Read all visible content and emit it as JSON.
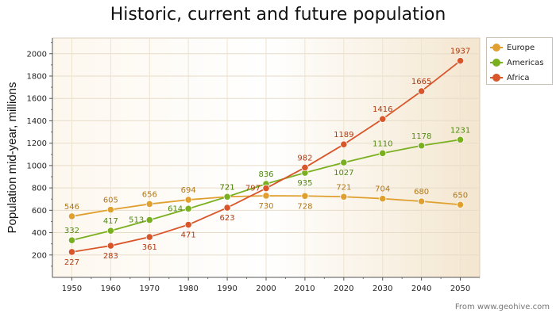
{
  "chart_data": {
    "type": "line",
    "title": "Historic, current and future population",
    "xlabel": "",
    "ylabel": "Population mid-year, millions",
    "x": [
      1950,
      1960,
      1970,
      1980,
      1990,
      2000,
      2010,
      2020,
      2030,
      2040,
      2050
    ],
    "ylim": [
      0,
      2140
    ],
    "yticks": [
      200,
      400,
      600,
      800,
      1000,
      1200,
      1400,
      1600,
      1800,
      2000
    ],
    "grid": true,
    "legend_position": "top-right",
    "series": [
      {
        "name": "Europe",
        "color": "#e0a030",
        "label_color": "#b07818",
        "values": [
          546,
          605,
          656,
          694,
          721,
          730,
          728,
          721,
          704,
          680,
          650
        ]
      },
      {
        "name": "Americas",
        "color": "#7ab020",
        "label_color": "#4f8a10",
        "values": [
          332,
          417,
          513,
          614,
          721,
          836,
          935,
          1027,
          1110,
          1178,
          1231
        ]
      },
      {
        "name": "Africa",
        "color": "#d8562a",
        "label_color": "#b03a10",
        "values": [
          227,
          283,
          361,
          471,
          623,
          797,
          982,
          1189,
          1416,
          1665,
          1937
        ]
      }
    ],
    "source": "From www.geohive.com"
  }
}
